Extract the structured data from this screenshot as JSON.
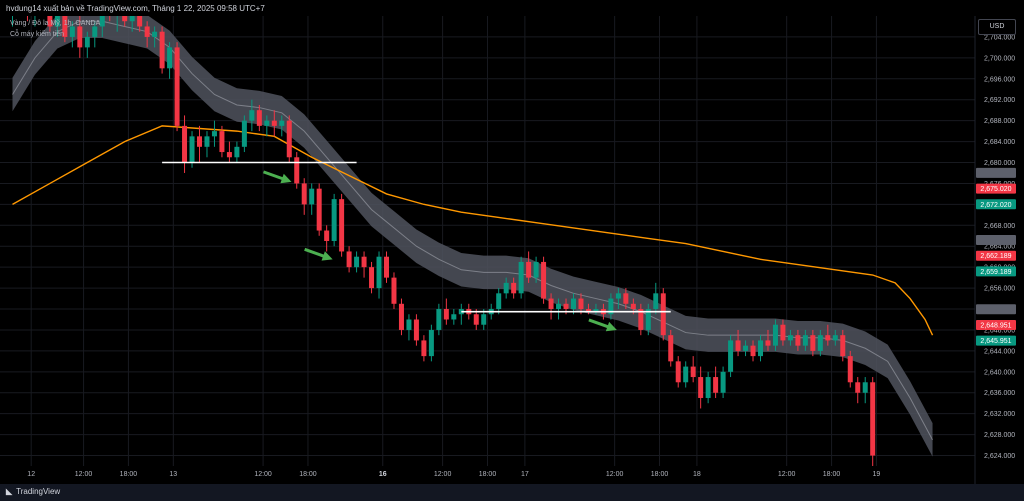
{
  "header": {
    "published": "hvdung14 xuất bản về TradingView.com, Tháng 1 22, 2025 09:58 UTC+7",
    "symbol": "Vàng / Đô la Mỹ, 1h, OANDA",
    "indicator": "Cỗ máy kiếm tiền"
  },
  "currency_button": "USD",
  "footer": {
    "brand": "TradingView",
    "logo": "tradingview-logo"
  },
  "colors": {
    "background": "#000000",
    "up": "#089981",
    "down": "#f23645",
    "ma": "#ff9800",
    "band": "#50535e",
    "band_line": "#9598a1",
    "arrow": "#4caf50",
    "support": "#ffffff",
    "grid": "#181a20"
  },
  "chart_data": {
    "type": "candlestick",
    "ylim": [
      2622,
      2708
    ],
    "y_ticks": [
      "2,704.000",
      "2,700.000",
      "2,696.000",
      "2,692.000",
      "2,688.000",
      "2,684.000",
      "2,680.000",
      "2,676.000",
      "2,672.000",
      "2,668.000",
      "2,664.000",
      "2,660.000",
      "2,656.000",
      "2,652.000",
      "2,648.000",
      "2,644.000",
      "2,640.000",
      "2,636.000",
      "2,632.000",
      "2,628.000",
      "2,624.000"
    ],
    "y_tick_values": [
      2704,
      2700,
      2696,
      2692,
      2688,
      2684,
      2680,
      2676,
      2672,
      2668,
      2664,
      2660,
      2656,
      2652,
      2648,
      2644,
      2640,
      2636,
      2632,
      2628,
      2624
    ],
    "x_ticks": [
      {
        "label": "12",
        "index": 2.5
      },
      {
        "label": "12:00",
        "index": 9.5
      },
      {
        "label": "18:00",
        "index": 15.5
      },
      {
        "label": "13",
        "index": 21.5
      },
      {
        "label": "12:00",
        "index": 33.5
      },
      {
        "label": "18:00",
        "index": 39.5
      },
      {
        "label": "16",
        "index": 49.5
      },
      {
        "label": "12:00",
        "index": 57.5
      },
      {
        "label": "18:00",
        "index": 63.5
      },
      {
        "label": "17",
        "index": 68.5
      },
      {
        "label": "12:00",
        "index": 80.5
      },
      {
        "label": "18:00",
        "index": 86.5
      },
      {
        "label": "18",
        "index": 91.5
      },
      {
        "label": "12:00",
        "index": 103.5
      },
      {
        "label": "18:00",
        "index": 109.5
      },
      {
        "label": "19",
        "index": 115.5
      }
    ],
    "price_labels": [
      {
        "value": 2675.02,
        "text": "2,675.020",
        "color": "#f23645"
      },
      {
        "value": 2672.02,
        "text": "2,672.020",
        "color": "#089981"
      },
      {
        "value": 2662.189,
        "text": "2,662.189",
        "color": "#f23645"
      },
      {
        "value": 2659.189,
        "text": "2,659.189",
        "color": "#089981"
      },
      {
        "value": 2648.951,
        "text": "2,648.951",
        "color": "#f23645"
      },
      {
        "value": 2645.951,
        "text": "2,645.951",
        "color": "#089981"
      }
    ],
    "support_lines": [
      {
        "price": 2680,
        "from": 20,
        "to": 46
      },
      {
        "price": 2651.5,
        "from": 60,
        "to": 88
      }
    ],
    "arrows": [
      {
        "index": 37.3,
        "price": 2676.3
      },
      {
        "index": 42.8,
        "price": 2661.5
      },
      {
        "index": 80.8,
        "price": 2648.0
      }
    ],
    "ohlc": [
      [
        2708,
        2713,
        2706,
        2711
      ],
      [
        2711,
        2715,
        2709,
        2713
      ],
      [
        2713,
        2714,
        2707,
        2709
      ],
      [
        2709,
        2712,
        2706,
        2710
      ],
      [
        2710,
        2713,
        2708,
        2711
      ],
      [
        2711,
        2712,
        2705,
        2706
      ],
      [
        2706,
        2709,
        2704,
        2708
      ],
      [
        2708,
        2710,
        2703,
        2704
      ],
      [
        2704,
        2707,
        2702,
        2706
      ],
      [
        2706,
        2708,
        2700,
        2702
      ],
      [
        2702,
        2705,
        2700,
        2704
      ],
      [
        2704,
        2707,
        2702,
        2706
      ],
      [
        2706,
        2711,
        2704,
        2709
      ],
      [
        2709,
        2712,
        2707,
        2708
      ],
      [
        2708,
        2710,
        2705,
        2709
      ],
      [
        2709,
        2711,
        2706,
        2707
      ],
      [
        2707,
        2710,
        2705,
        2708
      ],
      [
        2708,
        2710,
        2705,
        2706
      ],
      [
        2706,
        2707,
        2702,
        2704
      ],
      [
        2704,
        2706,
        2702,
        2705
      ],
      [
        2705,
        2706,
        2697,
        2698
      ],
      [
        2698,
        2703,
        2696,
        2702
      ],
      [
        2702,
        2703,
        2686,
        2687
      ],
      [
        2687,
        2689,
        2678,
        2680
      ],
      [
        2680,
        2686,
        2679,
        2685
      ],
      [
        2685,
        2687,
        2680,
        2683
      ],
      [
        2683,
        2686,
        2681,
        2685
      ],
      [
        2685,
        2688,
        2683,
        2686
      ],
      [
        2686,
        2687,
        2681,
        2682
      ],
      [
        2682,
        2684,
        2680,
        2681
      ],
      [
        2681,
        2684,
        2680,
        2683
      ],
      [
        2683,
        2689,
        2682,
        2688
      ],
      [
        2688,
        2692,
        2686,
        2690
      ],
      [
        2690,
        2691,
        2686,
        2687
      ],
      [
        2687,
        2689,
        2685,
        2688
      ],
      [
        2688,
        2690,
        2685,
        2687
      ],
      [
        2687,
        2689,
        2685,
        2688
      ],
      [
        2688,
        2689,
        2680,
        2681
      ],
      [
        2681,
        2682,
        2675,
        2676
      ],
      [
        2676,
        2677,
        2670,
        2672
      ],
      [
        2672,
        2676,
        2670,
        2675
      ],
      [
        2675,
        2676,
        2666,
        2667
      ],
      [
        2667,
        2668,
        2663,
        2665
      ],
      [
        2665,
        2674,
        2664,
        2673
      ],
      [
        2673,
        2674,
        2662,
        2663
      ],
      [
        2663,
        2664,
        2659,
        2660
      ],
      [
        2660,
        2663,
        2659,
        2662
      ],
      [
        2662,
        2663,
        2658,
        2660
      ],
      [
        2660,
        2661,
        2655,
        2656
      ],
      [
        2656,
        2663,
        2654,
        2662
      ],
      [
        2662,
        2663,
        2657,
        2658
      ],
      [
        2658,
        2659,
        2652,
        2653
      ],
      [
        2653,
        2654,
        2647,
        2648
      ],
      [
        2648,
        2651,
        2646,
        2650
      ],
      [
        2650,
        2651,
        2645,
        2646
      ],
      [
        2646,
        2647,
        2642,
        2643
      ],
      [
        2643,
        2649,
        2642,
        2648
      ],
      [
        2648,
        2653,
        2647,
        2652
      ],
      [
        2652,
        2654,
        2649,
        2650
      ],
      [
        2650,
        2652,
        2649,
        2651
      ],
      [
        2651,
        2653,
        2649,
        2652
      ],
      [
        2652,
        2653,
        2650,
        2651
      ],
      [
        2651,
        2652,
        2648,
        2649
      ],
      [
        2649,
        2652,
        2648,
        2651
      ],
      [
        2651,
        2653,
        2650,
        2652
      ],
      [
        2652,
        2656,
        2651,
        2655
      ],
      [
        2655,
        2658,
        2654,
        2657
      ],
      [
        2657,
        2658,
        2654,
        2655
      ],
      [
        2655,
        2662,
        2654,
        2661
      ],
      [
        2661,
        2663,
        2657,
        2658
      ],
      [
        2658,
        2662,
        2657,
        2661
      ],
      [
        2661,
        2662,
        2653,
        2654
      ],
      [
        2654,
        2655,
        2650,
        2652
      ],
      [
        2652,
        2654,
        2650,
        2653
      ],
      [
        2653,
        2654,
        2651,
        2652
      ],
      [
        2652,
        2655,
        2651,
        2654
      ],
      [
        2654,
        2655,
        2651,
        2652
      ],
      [
        2652,
        2653,
        2651,
        2651.5
      ],
      [
        2651.5,
        2653,
        2651,
        2652
      ],
      [
        2652,
        2653,
        2650,
        2651
      ],
      [
        2651,
        2655,
        2650,
        2654
      ],
      [
        2654,
        2656,
        2652,
        2655
      ],
      [
        2655,
        2656,
        2652,
        2653
      ],
      [
        2653,
        2654,
        2651,
        2652
      ],
      [
        2652,
        2653,
        2647,
        2648
      ],
      [
        2648,
        2653,
        2647,
        2652
      ],
      [
        2652,
        2657,
        2651,
        2655
      ],
      [
        2655,
        2656,
        2646,
        2647
      ],
      [
        2647,
        2648,
        2641,
        2642
      ],
      [
        2642,
        2643,
        2637,
        2638
      ],
      [
        2638,
        2642,
        2637,
        2641
      ],
      [
        2641,
        2643,
        2638,
        2639
      ],
      [
        2639,
        2641,
        2633,
        2635
      ],
      [
        2635,
        2640,
        2634,
        2639
      ],
      [
        2639,
        2641,
        2635,
        2636
      ],
      [
        2636,
        2641,
        2635,
        2640
      ],
      [
        2640,
        2647,
        2639,
        2646
      ],
      [
        2646,
        2648,
        2643,
        2644
      ],
      [
        2644,
        2646,
        2643,
        2645
      ],
      [
        2645,
        2646,
        2642,
        2643
      ],
      [
        2643,
        2647,
        2642,
        2646
      ],
      [
        2646,
        2648,
        2644,
        2645
      ],
      [
        2645,
        2650,
        2644,
        2649
      ],
      [
        2649,
        2650,
        2645,
        2646
      ],
      [
        2646,
        2648,
        2645,
        2647
      ],
      [
        2647,
        2648,
        2644,
        2645
      ],
      [
        2645,
        2648,
        2644,
        2647
      ],
      [
        2647,
        2648,
        2643,
        2644
      ],
      [
        2644,
        2648,
        2643,
        2647
      ],
      [
        2647,
        2649,
        2645,
        2646
      ],
      [
        2646,
        2648,
        2645,
        2647
      ],
      [
        2647,
        2648,
        2642,
        2643
      ],
      [
        2643,
        2644,
        2637,
        2638
      ],
      [
        2638,
        2639,
        2634,
        2636
      ],
      [
        2636,
        2639,
        2634,
        2638
      ],
      [
        2638,
        2639,
        2622,
        2624
      ]
    ],
    "ma": [
      [
        0,
        2672
      ],
      [
        5,
        2676
      ],
      [
        10,
        2680
      ],
      [
        15,
        2684
      ],
      [
        20,
        2687
      ],
      [
        25,
        2686.5
      ],
      [
        30,
        2686
      ],
      [
        35,
        2685
      ],
      [
        40,
        2681
      ],
      [
        45,
        2677.5
      ],
      [
        50,
        2674
      ],
      [
        55,
        2672
      ],
      [
        60,
        2670.5
      ],
      [
        65,
        2669.5
      ],
      [
        70,
        2668.5
      ],
      [
        75,
        2667.5
      ],
      [
        80,
        2666.5
      ],
      [
        85,
        2665.5
      ],
      [
        90,
        2664.5
      ],
      [
        95,
        2663
      ],
      [
        100,
        2661.5
      ],
      [
        105,
        2660.5
      ],
      [
        110,
        2659.5
      ],
      [
        115,
        2658.5
      ],
      [
        118,
        2657
      ],
      [
        120,
        2654
      ],
      [
        122,
        2650
      ],
      [
        123,
        2647
      ]
    ],
    "band_mid": [
      [
        0,
        2693
      ],
      [
        3,
        2700
      ],
      [
        6,
        2705
      ],
      [
        9,
        2707
      ],
      [
        12,
        2707
      ],
      [
        15,
        2706
      ],
      [
        18,
        2705
      ],
      [
        21,
        2702
      ],
      [
        24,
        2697
      ],
      [
        27,
        2693
      ],
      [
        30,
        2691
      ],
      [
        33,
        2690.5
      ],
      [
        36,
        2689.5
      ],
      [
        39,
        2686
      ],
      [
        42,
        2681
      ],
      [
        45,
        2676
      ],
      [
        48,
        2671
      ],
      [
        51,
        2667.5
      ],
      [
        54,
        2664
      ],
      [
        57,
        2661.5
      ],
      [
        60,
        2659.5
      ],
      [
        63,
        2659
      ],
      [
        66,
        2659
      ],
      [
        69,
        2658.5
      ],
      [
        72,
        2656.5
      ],
      [
        75,
        2655
      ],
      [
        78,
        2654
      ],
      [
        81,
        2653
      ],
      [
        84,
        2651.5
      ],
      [
        87,
        2649.5
      ],
      [
        90,
        2647.5
      ],
      [
        93,
        2647
      ],
      [
        96,
        2647
      ],
      [
        99,
        2647
      ],
      [
        102,
        2647
      ],
      [
        105,
        2646.5
      ],
      [
        108,
        2646.5
      ],
      [
        111,
        2646
      ],
      [
        114,
        2644.5
      ],
      [
        117,
        2642
      ],
      [
        120,
        2635
      ],
      [
        123,
        2627
      ]
    ],
    "band_half_width": 3.2
  }
}
